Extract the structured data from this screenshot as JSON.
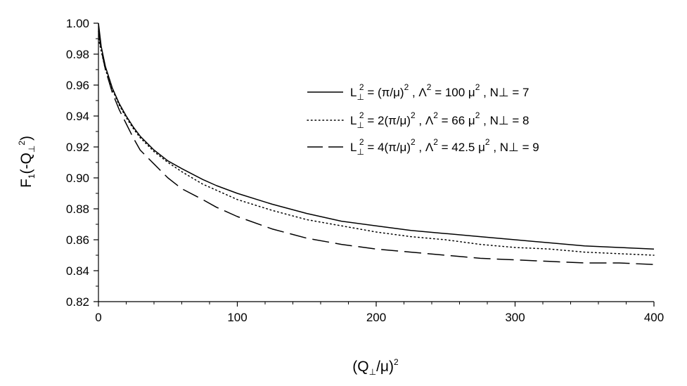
{
  "chart_data": {
    "type": "line",
    "xlabel": {
      "base": "(Q",
      "sub": "⊥",
      "mid": "/μ)",
      "sup": "2"
    },
    "ylabel": {
      "p1": "F",
      "s1": "1",
      "p2": "(-Q",
      "s2": "⊥",
      "sup": "2",
      "p3": ")"
    },
    "xlim": [
      0,
      400
    ],
    "ylim": [
      0.82,
      1.0
    ],
    "x_ticks": [
      0,
      100,
      200,
      300,
      400
    ],
    "x_tick_labels": [
      "0",
      "100",
      "200",
      "300",
      "400"
    ],
    "y_ticks": [
      0.82,
      0.84,
      0.86,
      0.88,
      0.9,
      0.92,
      0.94,
      0.96,
      0.98,
      1.0
    ],
    "y_tick_labels": [
      "0.82",
      "0.84",
      "0.86",
      "0.88",
      "0.90",
      "0.92",
      "0.94",
      "0.96",
      "0.98",
      "1.00"
    ],
    "grid": false,
    "legend_position": "upper-right",
    "series": [
      {
        "style": "solid",
        "legend": {
          "a": "L",
          "a_sub": "⊥",
          "a_sup": "2",
          "b": " = (π/μ)",
          "b_sup": "2",
          "c": " ,   Λ",
          "c_sup": "2",
          "d": " = 100 μ",
          "d_sup": "2",
          "e": " ,    N⊥ = 7"
        },
        "x": [
          0,
          2,
          5,
          10,
          15,
          20,
          25,
          30,
          40,
          50,
          60,
          75,
          85,
          100,
          125,
          150,
          175,
          200,
          225,
          250,
          275,
          300,
          325,
          350,
          375,
          400
        ],
        "y": [
          1.0,
          0.985,
          0.972,
          0.958,
          0.948,
          0.94,
          0.933,
          0.927,
          0.918,
          0.911,
          0.906,
          0.899,
          0.895,
          0.89,
          0.883,
          0.877,
          0.872,
          0.869,
          0.866,
          0.864,
          0.862,
          0.86,
          0.858,
          0.856,
          0.855,
          0.854
        ]
      },
      {
        "style": "dotted",
        "legend": {
          "a": "L",
          "a_sub": "⊥",
          "a_sup": "2",
          "b": " = 2(π/μ)",
          "b_sup": "2",
          "c": " ,  Λ",
          "c_sup": "2",
          "d": " = 66 μ",
          "d_sup": "2",
          "e": " ,     N⊥ = 8"
        },
        "x": [
          0,
          2,
          5,
          10,
          15,
          20,
          25,
          30,
          40,
          50,
          60,
          75,
          85,
          100,
          125,
          150,
          175,
          200,
          225,
          250,
          275,
          300,
          325,
          350,
          375,
          400
        ],
        "y": [
          0.99,
          0.982,
          0.97,
          0.957,
          0.947,
          0.939,
          0.932,
          0.926,
          0.917,
          0.91,
          0.904,
          0.896,
          0.892,
          0.886,
          0.879,
          0.873,
          0.869,
          0.865,
          0.862,
          0.86,
          0.857,
          0.855,
          0.854,
          0.852,
          0.851,
          0.85
        ]
      },
      {
        "style": "dashed",
        "legend": {
          "a": "L",
          "a_sub": "⊥",
          "a_sup": "2",
          "b": " = 4(π/μ)",
          "b_sup": "2",
          "c": " ,  Λ",
          "c_sup": "2",
          "d": " = 42.5 μ",
          "d_sup": "2",
          "e": " ,   N⊥ = 9"
        },
        "x": [
          0,
          2,
          5,
          10,
          15,
          20,
          25,
          30,
          40,
          50,
          60,
          75,
          85,
          100,
          125,
          150,
          175,
          200,
          225,
          250,
          275,
          300,
          325,
          350,
          375,
          400
        ],
        "y": [
          0.995,
          0.983,
          0.97,
          0.955,
          0.944,
          0.935,
          0.926,
          0.918,
          0.909,
          0.9,
          0.893,
          0.886,
          0.881,
          0.875,
          0.867,
          0.861,
          0.857,
          0.854,
          0.852,
          0.85,
          0.848,
          0.847,
          0.846,
          0.845,
          0.845,
          0.844
        ]
      }
    ]
  }
}
